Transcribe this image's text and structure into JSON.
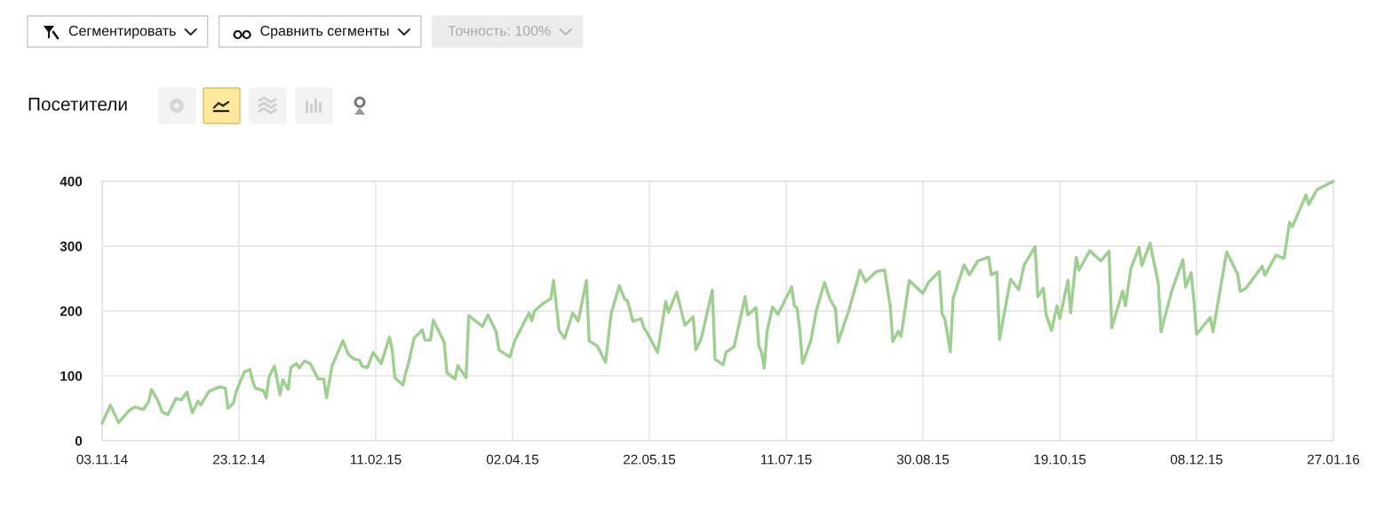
{
  "chart_data": {
    "type": "line",
    "title": "Посетители",
    "annotations": [
      "Сегментировать",
      "Сравнить сегменты",
      "Точность: 100%"
    ],
    "x": [
      "2014-11-03",
      "2014-11-06",
      "2014-11-09",
      "2014-11-13",
      "2014-11-15",
      "2014-11-18",
      "2014-11-20",
      "2014-11-21",
      "2014-11-23",
      "2014-11-25",
      "2014-11-27",
      "2014-11-30",
      "2014-12-02",
      "2014-12-04",
      "2014-12-06",
      "2014-12-08",
      "2014-12-09",
      "2014-12-12",
      "2014-12-16",
      "2014-12-18",
      "2014-12-19",
      "2014-12-21",
      "2014-12-22",
      "2014-12-25",
      "2014-12-27",
      "2014-12-28",
      "2014-12-29",
      "2015-01-01",
      "2015-01-02",
      "2015-01-03",
      "2015-01-05",
      "2015-01-07",
      "2015-01-08",
      "2015-01-10",
      "2015-01-11",
      "2015-01-13",
      "2015-01-14",
      "2015-01-16",
      "2015-01-18",
      "2015-01-21",
      "2015-01-23",
      "2015-01-24",
      "2015-01-26",
      "2015-01-30",
      "2015-02-01",
      "2015-02-03",
      "2015-02-05",
      "2015-02-06",
      "2015-02-08",
      "2015-02-10",
      "2015-02-13",
      "2015-02-16",
      "2015-02-17",
      "2015-02-18",
      "2015-02-21",
      "2015-02-22",
      "2015-02-23",
      "2015-02-25",
      "2015-02-28",
      "2015-03-01",
      "2015-03-03",
      "2015-03-04",
      "2015-03-08",
      "2015-03-09",
      "2015-03-12",
      "2015-03-13",
      "2015-03-16",
      "2015-03-17",
      "2015-03-22",
      "2015-03-24",
      "2015-03-27",
      "2015-03-28",
      "2015-04-01",
      "2015-04-03",
      "2015-04-08",
      "2015-04-09",
      "2015-04-10",
      "2015-04-13",
      "2015-04-16",
      "2015-04-17",
      "2015-04-19",
      "2015-04-21",
      "2015-04-24",
      "2015-04-26",
      "2015-04-29",
      "2015-04-30",
      "2015-05-03",
      "2015-05-06",
      "2015-05-08",
      "2015-05-11",
      "2015-05-13",
      "2015-05-14",
      "2015-05-16",
      "2015-05-19",
      "2015-05-20",
      "2015-05-21",
      "2015-05-25",
      "2015-05-28",
      "2015-05-29",
      "2015-06-01",
      "2015-06-04",
      "2015-06-07",
      "2015-06-08",
      "2015-06-10",
      "2015-06-14",
      "2015-06-15",
      "2015-06-18",
      "2015-06-19",
      "2015-06-22",
      "2015-06-26",
      "2015-06-27",
      "2015-06-30",
      "2015-07-01",
      "2015-07-02",
      "2015-07-03",
      "2015-07-04",
      "2015-07-06",
      "2015-07-08",
      "2015-07-13",
      "2015-07-14",
      "2015-07-15",
      "2015-07-16",
      "2015-07-17",
      "2015-07-20",
      "2015-07-22",
      "2015-07-25",
      "2015-07-27",
      "2015-07-29",
      "2015-07-30",
      "2015-08-03",
      "2015-08-07",
      "2015-08-09",
      "2015-08-13",
      "2015-08-16",
      "2015-08-17",
      "2015-08-18",
      "2015-08-19",
      "2015-08-21",
      "2015-08-22",
      "2015-08-25",
      "2015-08-30",
      "2015-09-01",
      "2015-09-05",
      "2015-09-06",
      "2015-09-07",
      "2015-09-09",
      "2015-09-10",
      "2015-09-14",
      "2015-09-16",
      "2015-09-19",
      "2015-09-23",
      "2015-09-24",
      "2015-09-26",
      "2015-09-27",
      "2015-10-01",
      "2015-10-04",
      "2015-10-06",
      "2015-10-10",
      "2015-10-11",
      "2015-10-13",
      "2015-10-14",
      "2015-10-16",
      "2015-10-18",
      "2015-10-19",
      "2015-10-22",
      "2015-10-23",
      "2015-10-25",
      "2015-10-26",
      "2015-10-30",
      "2015-11-03",
      "2015-11-06",
      "2015-11-07",
      "2015-11-11",
      "2015-11-12",
      "2015-11-14",
      "2015-11-17",
      "2015-11-18",
      "2015-11-21",
      "2015-11-24",
      "2015-11-25",
      "2015-11-29",
      "2015-12-03",
      "2015-12-04",
      "2015-12-06",
      "2015-12-07",
      "2015-12-08",
      "2015-12-13",
      "2015-12-14",
      "2015-12-19",
      "2015-12-23",
      "2015-12-24",
      "2015-12-26",
      "2016-01-01",
      "2016-01-02",
      "2016-01-06",
      "2016-01-09",
      "2016-01-11",
      "2016-01-12",
      "2016-01-17",
      "2016-01-18",
      "2016-01-21",
      "2016-01-27"
    ],
    "series": [
      {
        "color": "#9bd08d",
        "values": [
          27,
          55,
          28,
          47,
          52,
          48,
          60,
          79,
          65,
          44,
          40,
          65,
          63,
          75,
          43,
          61,
          55,
          76,
          83,
          81,
          50,
          58,
          76,
          106,
          110,
          92,
          81,
          77,
          66,
          99,
          115,
          71,
          94,
          79,
          113,
          119,
          112,
          123,
          119,
          95,
          95,
          66,
          115,
          154,
          133,
          126,
          124,
          115,
          113,
          136,
          119,
          160,
          140,
          97,
          86,
          106,
          120,
          158,
          171,
          155,
          155,
          186,
          152,
          105,
          95,
          116,
          97,
          193,
          176,
          194,
          168,
          140,
          129,
          156,
          197,
          185,
          200,
          211,
          219,
          247,
          170,
          158,
          197,
          184,
          247,
          154,
          146,
          121,
          195,
          239,
          218,
          216,
          184,
          188,
          174,
          168,
          136,
          215,
          198,
          229,
          178,
          191,
          140,
          158,
          232,
          126,
          117,
          136,
          145,
          222,
          194,
          205,
          146,
          136,
          112,
          168,
          206,
          195,
          237,
          208,
          204,
          170,
          119,
          154,
          200,
          244,
          218,
          204,
          152,
          202,
          263,
          245,
          261,
          263,
          234,
          209,
          153,
          169,
          161,
          247,
          227,
          244,
          261,
          195,
          188,
          137,
          219,
          271,
          256,
          277,
          283,
          256,
          260,
          156,
          249,
          233,
          271,
          299,
          222,
          235,
          195,
          170,
          208,
          188,
          247,
          197,
          283,
          263,
          293,
          277,
          292,
          174,
          231,
          208,
          266,
          298,
          270,
          305,
          243,
          168,
          232,
          279,
          237,
          259,
          218,
          164,
          190,
          168,
          291,
          257,
          230,
          235,
          269,
          255,
          286,
          281,
          337,
          330,
          379,
          364,
          387,
          400
        ]
      }
    ],
    "xlim": [
      "2014-11-03",
      "2016-01-27"
    ],
    "xticks": [
      {
        "value": "2014-11-03",
        "label": "03.11.14"
      },
      {
        "value": "2014-12-23",
        "label": "23.12.14"
      },
      {
        "value": "2015-02-11",
        "label": "11.02.15"
      },
      {
        "value": "2015-04-02",
        "label": "02.04.15"
      },
      {
        "value": "2015-05-22",
        "label": "22.05.15"
      },
      {
        "value": "2015-07-11",
        "label": "11.07.15"
      },
      {
        "value": "2015-08-30",
        "label": "30.08.15"
      },
      {
        "value": "2015-10-19",
        "label": "19.10.15"
      },
      {
        "value": "2015-12-08",
        "label": "08.12.15"
      },
      {
        "value": "2016-01-27",
        "label": "27.01.16"
      }
    ],
    "ylim": [
      0,
      400
    ],
    "yticks": [
      0,
      100,
      200,
      300,
      400
    ],
    "grid": true,
    "line_style": "solid"
  }
}
